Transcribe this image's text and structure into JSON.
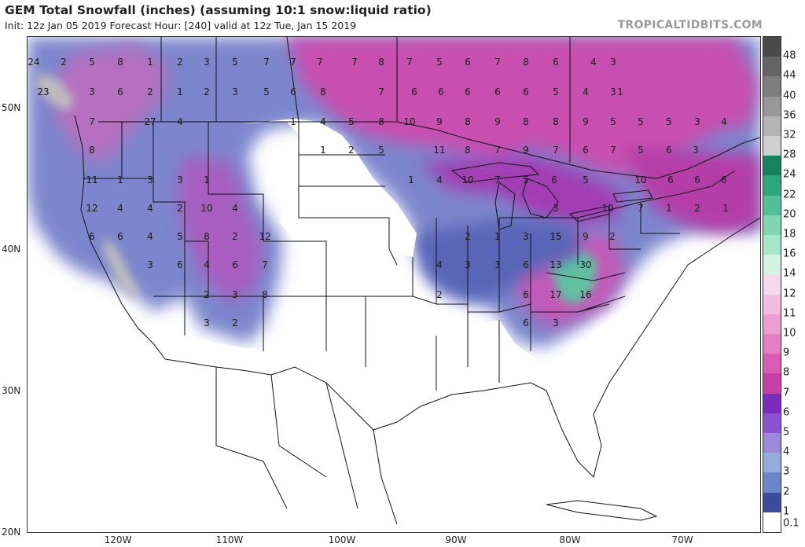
{
  "header": {
    "title": "GEM Total Snowfall (inches) (assuming 10:1 snow:liquid ratio)",
    "subtitle": "Init: 12z Jan 05 2019   Forecast Hour: [240]   valid at 12z Tue, Jan 15 2019",
    "brand": "TROPICALTIDBITS.COM"
  },
  "axes": {
    "lat_labels": [
      "50N",
      "40N",
      "30N",
      "20N"
    ],
    "lon_labels": [
      "120W",
      "110W",
      "100W",
      "90W",
      "80W",
      "70W"
    ]
  },
  "colorbar": {
    "levels": [
      "0.1",
      "1",
      "2",
      "3",
      "4",
      "5",
      "6",
      "7",
      "8",
      "9",
      "10",
      "11",
      "12",
      "14",
      "16",
      "18",
      "20",
      "22",
      "24",
      "28",
      "32",
      "36",
      "40",
      "44",
      "48"
    ],
    "colors": [
      "#ffffff",
      "#3c4b9e",
      "#6a86c9",
      "#93acdd",
      "#9b8ad8",
      "#8a52d0",
      "#7a2cc0",
      "#c83fa8",
      "#d95cb5",
      "#e57ec4",
      "#ec9dd2",
      "#f3bde2",
      "#f7d9ee",
      "#d4f2e4",
      "#a9e5cb",
      "#7fd6b1",
      "#52c196",
      "#2ea67b",
      "#17825e",
      "#cfcfcf",
      "#b4b4b4",
      "#989898",
      "#7d7d7d",
      "#646464",
      "#4a4a4a"
    ]
  },
  "map_values": [
    {
      "t": "24"
    },
    {
      "t": "2"
    },
    {
      "t": "5"
    },
    {
      "t": "8"
    },
    {
      "t": "1"
    },
    {
      "t": "2"
    },
    {
      "t": "3"
    },
    {
      "t": "5"
    },
    {
      "t": "7"
    },
    {
      "t": "7"
    },
    {
      "t": "7"
    },
    {
      "t": "7"
    },
    {
      "t": "8"
    },
    {
      "t": "7"
    },
    {
      "t": "5"
    },
    {
      "t": "6"
    },
    {
      "t": "7"
    },
    {
      "t": "8"
    },
    {
      "t": "6"
    },
    {
      "t": "4"
    },
    {
      "t": "3"
    },
    {
      "t": "23"
    },
    {
      "t": "3"
    },
    {
      "t": "6"
    },
    {
      "t": "2"
    },
    {
      "t": "1"
    },
    {
      "t": "2"
    },
    {
      "t": "3"
    },
    {
      "t": "5"
    },
    {
      "t": "6"
    },
    {
      "t": "8"
    },
    {
      "t": "7"
    },
    {
      "t": "6"
    },
    {
      "t": "6"
    },
    {
      "t": "6"
    },
    {
      "t": "6"
    },
    {
      "t": "6"
    },
    {
      "t": "5"
    },
    {
      "t": "4"
    },
    {
      "t": "3"
    },
    {
      "t": "1"
    },
    {
      "t": "7"
    },
    {
      "t": "27"
    },
    {
      "t": "4"
    },
    {
      "t": "1"
    },
    {
      "t": "4"
    },
    {
      "t": "5"
    },
    {
      "t": "8"
    },
    {
      "t": "10"
    },
    {
      "t": "9"
    },
    {
      "t": "8"
    },
    {
      "t": "9"
    },
    {
      "t": "8"
    },
    {
      "t": "8"
    },
    {
      "t": "9"
    },
    {
      "t": "5"
    },
    {
      "t": "5"
    },
    {
      "t": "5"
    },
    {
      "t": "3"
    },
    {
      "t": "4"
    },
    {
      "t": "8"
    },
    {
      "t": "1"
    },
    {
      "t": "2"
    },
    {
      "t": "5"
    },
    {
      "t": "11"
    },
    {
      "t": "8"
    },
    {
      "t": "7"
    },
    {
      "t": "9"
    },
    {
      "t": "7"
    },
    {
      "t": "6"
    },
    {
      "t": "7"
    },
    {
      "t": "5"
    },
    {
      "t": "6"
    },
    {
      "t": "3"
    },
    {
      "t": "11"
    },
    {
      "t": "1"
    },
    {
      "t": "3"
    },
    {
      "t": "3"
    },
    {
      "t": "1"
    },
    {
      "t": "1"
    },
    {
      "t": "4"
    },
    {
      "t": "10"
    },
    {
      "t": "7"
    },
    {
      "t": "5"
    },
    {
      "t": "6"
    },
    {
      "t": "5"
    },
    {
      "t": "10"
    },
    {
      "t": "6"
    },
    {
      "t": "6"
    },
    {
      "t": "6"
    },
    {
      "t": "12"
    },
    {
      "t": "4"
    },
    {
      "t": "4"
    },
    {
      "t": "2"
    },
    {
      "t": "10"
    },
    {
      "t": "4"
    },
    {
      "t": "3"
    },
    {
      "t": "10"
    },
    {
      "t": "7"
    },
    {
      "t": "1"
    },
    {
      "t": "2"
    },
    {
      "t": "1"
    },
    {
      "t": "6"
    },
    {
      "t": "6"
    },
    {
      "t": "4"
    },
    {
      "t": "5"
    },
    {
      "t": "8"
    },
    {
      "t": "2"
    },
    {
      "t": "12"
    },
    {
      "t": "2"
    },
    {
      "t": "1"
    },
    {
      "t": "3"
    },
    {
      "t": "15"
    },
    {
      "t": "9"
    },
    {
      "t": "2"
    },
    {
      "t": "3"
    },
    {
      "t": "6"
    },
    {
      "t": "4"
    },
    {
      "t": "6"
    },
    {
      "t": "7"
    },
    {
      "t": "4"
    },
    {
      "t": "3"
    },
    {
      "t": "3"
    },
    {
      "t": "6"
    },
    {
      "t": "13"
    },
    {
      "t": "30"
    },
    {
      "t": "2"
    },
    {
      "t": "3"
    },
    {
      "t": "8"
    },
    {
      "t": "2"
    },
    {
      "t": "6"
    },
    {
      "t": "17"
    },
    {
      "t": "16"
    },
    {
      "t": "3"
    },
    {
      "t": "2"
    },
    {
      "t": "6"
    },
    {
      "t": "3"
    }
  ]
}
